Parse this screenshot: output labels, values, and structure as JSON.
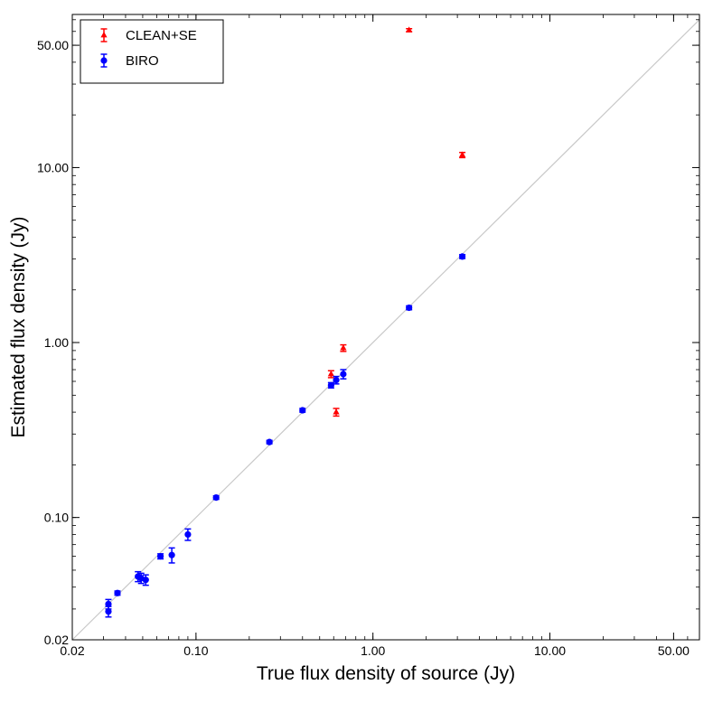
{
  "chart_data": {
    "type": "scatter",
    "x_scale": "log",
    "y_scale": "log",
    "xlabel": "True flux density of source (Jy)",
    "ylabel": "Estimated flux density (Jy)",
    "xlim": [
      0.02,
      70
    ],
    "ylim": [
      0.02,
      75
    ],
    "x_ticks": [
      {
        "value": 0.02,
        "label": "0.02"
      },
      {
        "value": 0.1,
        "label": "0.10"
      },
      {
        "value": 1,
        "label": "1.00"
      },
      {
        "value": 10,
        "label": "10.00"
      },
      {
        "value": 50,
        "label": "50.00"
      }
    ],
    "y_ticks": [
      {
        "value": 0.02,
        "label": "0.02"
      },
      {
        "value": 0.1,
        "label": "0.10"
      },
      {
        "value": 1,
        "label": "1.00"
      },
      {
        "value": 10,
        "label": "10.00"
      },
      {
        "value": 50,
        "label": "50.00"
      }
    ],
    "reference_line": "y = x",
    "legend_position": "top-left",
    "grid": false,
    "series": [
      {
        "name": "CLEAN+SE",
        "color": "#ff0000",
        "marker": "triangle",
        "points": [
          {
            "x": 1.6,
            "y": 61.0,
            "err": 1.2
          },
          {
            "x": 3.2,
            "y": 11.8,
            "err": 0.4
          },
          {
            "x": 0.68,
            "y": 0.93,
            "err": 0.04
          },
          {
            "x": 0.58,
            "y": 0.66,
            "err": 0.03
          },
          {
            "x": 0.62,
            "y": 0.4,
            "err": 0.02
          }
        ]
      },
      {
        "name": "BIRO",
        "color": "#0000ff",
        "marker": "circle",
        "points": [
          {
            "x": 3.2,
            "y": 3.1,
            "err": 0.08
          },
          {
            "x": 1.6,
            "y": 1.58,
            "err": 0.04
          },
          {
            "x": 0.68,
            "y": 0.66,
            "err": 0.04
          },
          {
            "x": 0.62,
            "y": 0.61,
            "err": 0.03
          },
          {
            "x": 0.58,
            "y": 0.57,
            "err": 0.02
          },
          {
            "x": 0.4,
            "y": 0.41,
            "err": 0.01
          },
          {
            "x": 0.26,
            "y": 0.27,
            "err": 0.006
          },
          {
            "x": 0.13,
            "y": 0.13,
            "err": 0.003
          },
          {
            "x": 0.09,
            "y": 0.08,
            "err": 0.006
          },
          {
            "x": 0.073,
            "y": 0.061,
            "err": 0.006
          },
          {
            "x": 0.063,
            "y": 0.06,
            "err": 0.002
          },
          {
            "x": 0.052,
            "y": 0.044,
            "err": 0.003
          },
          {
            "x": 0.049,
            "y": 0.045,
            "err": 0.003
          },
          {
            "x": 0.047,
            "y": 0.046,
            "err": 0.003
          },
          {
            "x": 0.036,
            "y": 0.037,
            "err": 0.001
          },
          {
            "x": 0.032,
            "y": 0.032,
            "err": 0.002
          },
          {
            "x": 0.032,
            "y": 0.029,
            "err": 0.002
          }
        ]
      }
    ]
  }
}
